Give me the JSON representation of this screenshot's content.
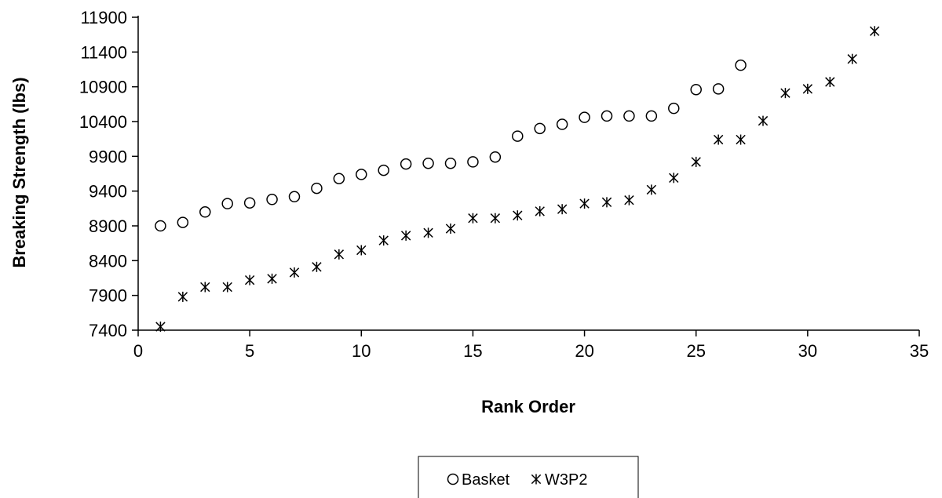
{
  "chart_data": {
    "type": "scatter",
    "title": "",
    "xlabel": "Rank Order",
    "ylabel": "Breaking Strength (lbs)",
    "xlim": [
      0,
      35
    ],
    "ylim": [
      7400,
      11900
    ],
    "xticks": [
      0,
      5,
      10,
      15,
      20,
      25,
      30,
      35
    ],
    "yticks": [
      7400,
      7900,
      8400,
      8900,
      9400,
      9900,
      10400,
      10900,
      11400,
      11900
    ],
    "grid": false,
    "legend_position": "bottom-center",
    "series": [
      {
        "name": "Basket",
        "marker": "circle",
        "color": "#000000",
        "x": [
          1,
          2,
          3,
          4,
          5,
          6,
          7,
          8,
          9,
          10,
          11,
          12,
          13,
          14,
          15,
          16,
          17,
          18,
          19,
          20,
          21,
          22,
          23,
          24,
          25,
          26,
          27
        ],
        "y": [
          8900,
          8950,
          9100,
          9220,
          9230,
          9280,
          9320,
          9440,
          9580,
          9640,
          9700,
          9790,
          9800,
          9800,
          9820,
          9890,
          10190,
          10300,
          10360,
          10460,
          10480,
          10480,
          10480,
          10590,
          10860,
          10870,
          11210
        ]
      },
      {
        "name": "W3P2",
        "marker": "asterisk",
        "color": "#000000",
        "x": [
          1,
          2,
          3,
          4,
          5,
          6,
          7,
          8,
          9,
          10,
          11,
          12,
          13,
          14,
          15,
          16,
          17,
          18,
          19,
          20,
          21,
          22,
          23,
          24,
          25,
          26,
          27,
          28,
          29,
          30,
          31,
          32,
          33
        ],
        "y": [
          7450,
          7880,
          8020,
          8020,
          8120,
          8140,
          8230,
          8310,
          8490,
          8550,
          8690,
          8760,
          8800,
          8860,
          9010,
          9010,
          9050,
          9110,
          9140,
          9220,
          9240,
          9270,
          9420,
          9590,
          9820,
          10140,
          10140,
          10410,
          10810,
          10870,
          10970,
          11300,
          11700
        ]
      }
    ]
  }
}
